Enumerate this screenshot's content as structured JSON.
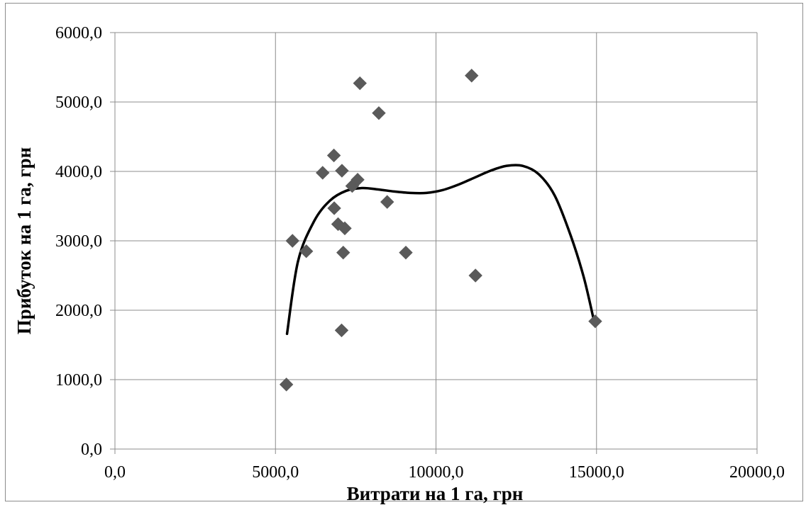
{
  "chart_data": {
    "type": "scatter",
    "xlabel": "Витрати на 1 га, грн",
    "ylabel": "Прибуток на 1 га, грн",
    "xlim": [
      0,
      20000
    ],
    "ylim": [
      0,
      6000
    ],
    "x_ticks": [
      0,
      5000,
      10000,
      15000,
      20000
    ],
    "y_ticks": [
      0,
      1000,
      2000,
      3000,
      4000,
      5000,
      6000
    ],
    "x_tick_labels": [
      "0,0",
      "5000,0",
      "10000,0",
      "15000,0",
      "20000,0"
    ],
    "y_tick_labels": [
      "0,0",
      "1000,0",
      "2000,0",
      "3000,0",
      "4000,0",
      "5000,0",
      "6000,0"
    ],
    "grid": true,
    "legend": "none",
    "series": [
      {
        "marker": "diamond",
        "color": "#5a5a5a",
        "points": [
          [
            5340,
            930
          ],
          [
            5530,
            3000
          ],
          [
            5960,
            2850
          ],
          [
            6470,
            3980
          ],
          [
            6820,
            4230
          ],
          [
            6830,
            3470
          ],
          [
            6950,
            3240
          ],
          [
            7070,
            4010
          ],
          [
            7110,
            2830
          ],
          [
            7160,
            3180
          ],
          [
            7060,
            1710
          ],
          [
            7390,
            3790
          ],
          [
            7560,
            3880
          ],
          [
            7630,
            5270
          ],
          [
            8220,
            4840
          ],
          [
            8480,
            3560
          ],
          [
            9060,
            2830
          ],
          [
            11110,
            5380
          ],
          [
            11230,
            2500
          ],
          [
            14960,
            1840
          ]
        ]
      }
    ],
    "trendline": {
      "type": "polynomial",
      "color": "#000000",
      "points": [
        [
          5360,
          1660
        ],
        [
          5700,
          2700
        ],
        [
          6200,
          3280
        ],
        [
          6700,
          3580
        ],
        [
          7200,
          3720
        ],
        [
          7700,
          3760
        ],
        [
          8200,
          3740
        ],
        [
          8700,
          3710
        ],
        [
          9200,
          3690
        ],
        [
          9700,
          3690
        ],
        [
          10200,
          3730
        ],
        [
          10700,
          3810
        ],
        [
          11200,
          3910
        ],
        [
          11700,
          4010
        ],
        [
          12200,
          4080
        ],
        [
          12700,
          4080
        ],
        [
          13200,
          3960
        ],
        [
          13700,
          3650
        ],
        [
          14200,
          3070
        ],
        [
          14600,
          2480
        ],
        [
          14900,
          1890
        ]
      ]
    }
  }
}
